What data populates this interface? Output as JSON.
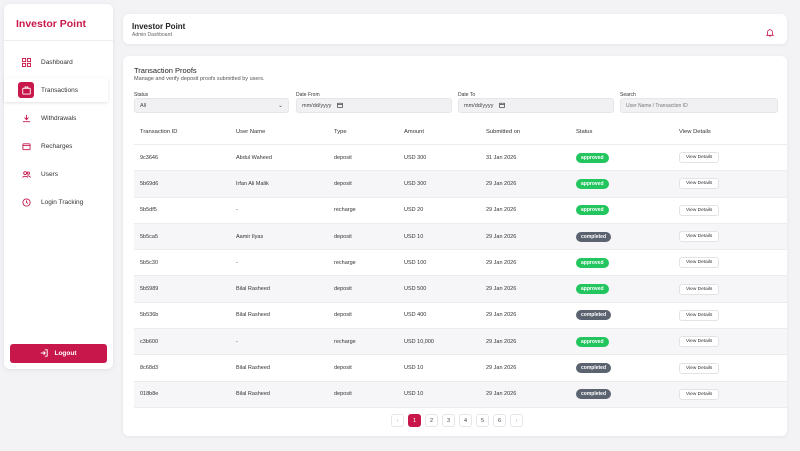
{
  "app": {
    "brand": "Investor Point"
  },
  "sidebar": {
    "items": [
      {
        "label": "Dashboard",
        "icon": "dashboard-icon"
      },
      {
        "label": "Transactions",
        "icon": "transactions-icon",
        "active": true
      },
      {
        "label": "Withdrawals",
        "icon": "download-icon"
      },
      {
        "label": "Recharges",
        "icon": "wallet-icon"
      },
      {
        "label": "Users",
        "icon": "users-icon"
      },
      {
        "label": "Login Tracking",
        "icon": "clock-icon"
      }
    ],
    "logout_label": "Logout"
  },
  "header": {
    "title": "Investor Point",
    "subtitle": "Admin Dashboard",
    "icon": "bell-icon"
  },
  "main": {
    "title": "Transaction Proofs",
    "subtitle": "Manage and verify deposit proofs submitted by users.",
    "filters": {
      "status_label": "Status",
      "status_value": "All",
      "date_from_label": "Date From",
      "date_from_value": "mm/dd/yyyy",
      "date_to_label": "Date To",
      "date_to_value": "mm/dd/yyyy",
      "search_label": "Search",
      "search_placeholder": "User Name / Transaction ID"
    },
    "table": {
      "headers": [
        "Transaction ID",
        "User Name",
        "Type",
        "Amount",
        "Submitted on",
        "Status",
        "View Details"
      ],
      "rows": [
        {
          "id": "9c3646",
          "user": "Abdul Waheed",
          "type": "deposit",
          "amount": "USD 300",
          "date": "31 Jan 2026",
          "status": "approved",
          "action": "View Details"
        },
        {
          "id": "5b69d6",
          "user": "Irfan Ali Malik",
          "type": "deposit",
          "amount": "USD 300",
          "date": "29 Jan 2026",
          "status": "approved",
          "action": "View Details"
        },
        {
          "id": "5b5df5",
          "user": "-",
          "type": "recharge",
          "amount": "USD 20",
          "date": "29 Jan 2026",
          "status": "approved",
          "action": "View Details"
        },
        {
          "id": "5b5ca5",
          "user": "Aamir Ilyas",
          "type": "deposit",
          "amount": "USD 10",
          "date": "29 Jan 2026",
          "status": "completed",
          "action": "View Details"
        },
        {
          "id": "5b5c30",
          "user": "-",
          "type": "recharge",
          "amount": "USD 100",
          "date": "29 Jan 2026",
          "status": "approved",
          "action": "View Details"
        },
        {
          "id": "5b5989",
          "user": "Bilal Rasheed",
          "type": "deposit",
          "amount": "USD 500",
          "date": "29 Jan 2026",
          "status": "approved",
          "action": "View Details"
        },
        {
          "id": "5b536b",
          "user": "Bilal Rasheed",
          "type": "deposit",
          "amount": "USD 400",
          "date": "29 Jan 2026",
          "status": "completed",
          "action": "View Details"
        },
        {
          "id": "c3b600",
          "user": "-",
          "type": "recharge",
          "amount": "USD 10,000",
          "date": "29 Jan 2026",
          "status": "approved",
          "action": "View Details"
        },
        {
          "id": "8c68d3",
          "user": "Bilal Rasheed",
          "type": "deposit",
          "amount": "USD 10",
          "date": "29 Jan 2026",
          "status": "completed",
          "action": "View Details"
        },
        {
          "id": "018b8e",
          "user": "Bilal Rasheed",
          "type": "deposit",
          "amount": "USD 10",
          "date": "29 Jan 2026",
          "status": "completed",
          "action": "View Details"
        }
      ]
    },
    "pagination": {
      "prev": "‹",
      "pages": [
        "1",
        "2",
        "3",
        "4",
        "5",
        "6"
      ],
      "current": "1",
      "next": "›"
    }
  },
  "colors": {
    "brand": "#c8174a",
    "approved": "#22c55e",
    "completed": "#5c6370"
  }
}
